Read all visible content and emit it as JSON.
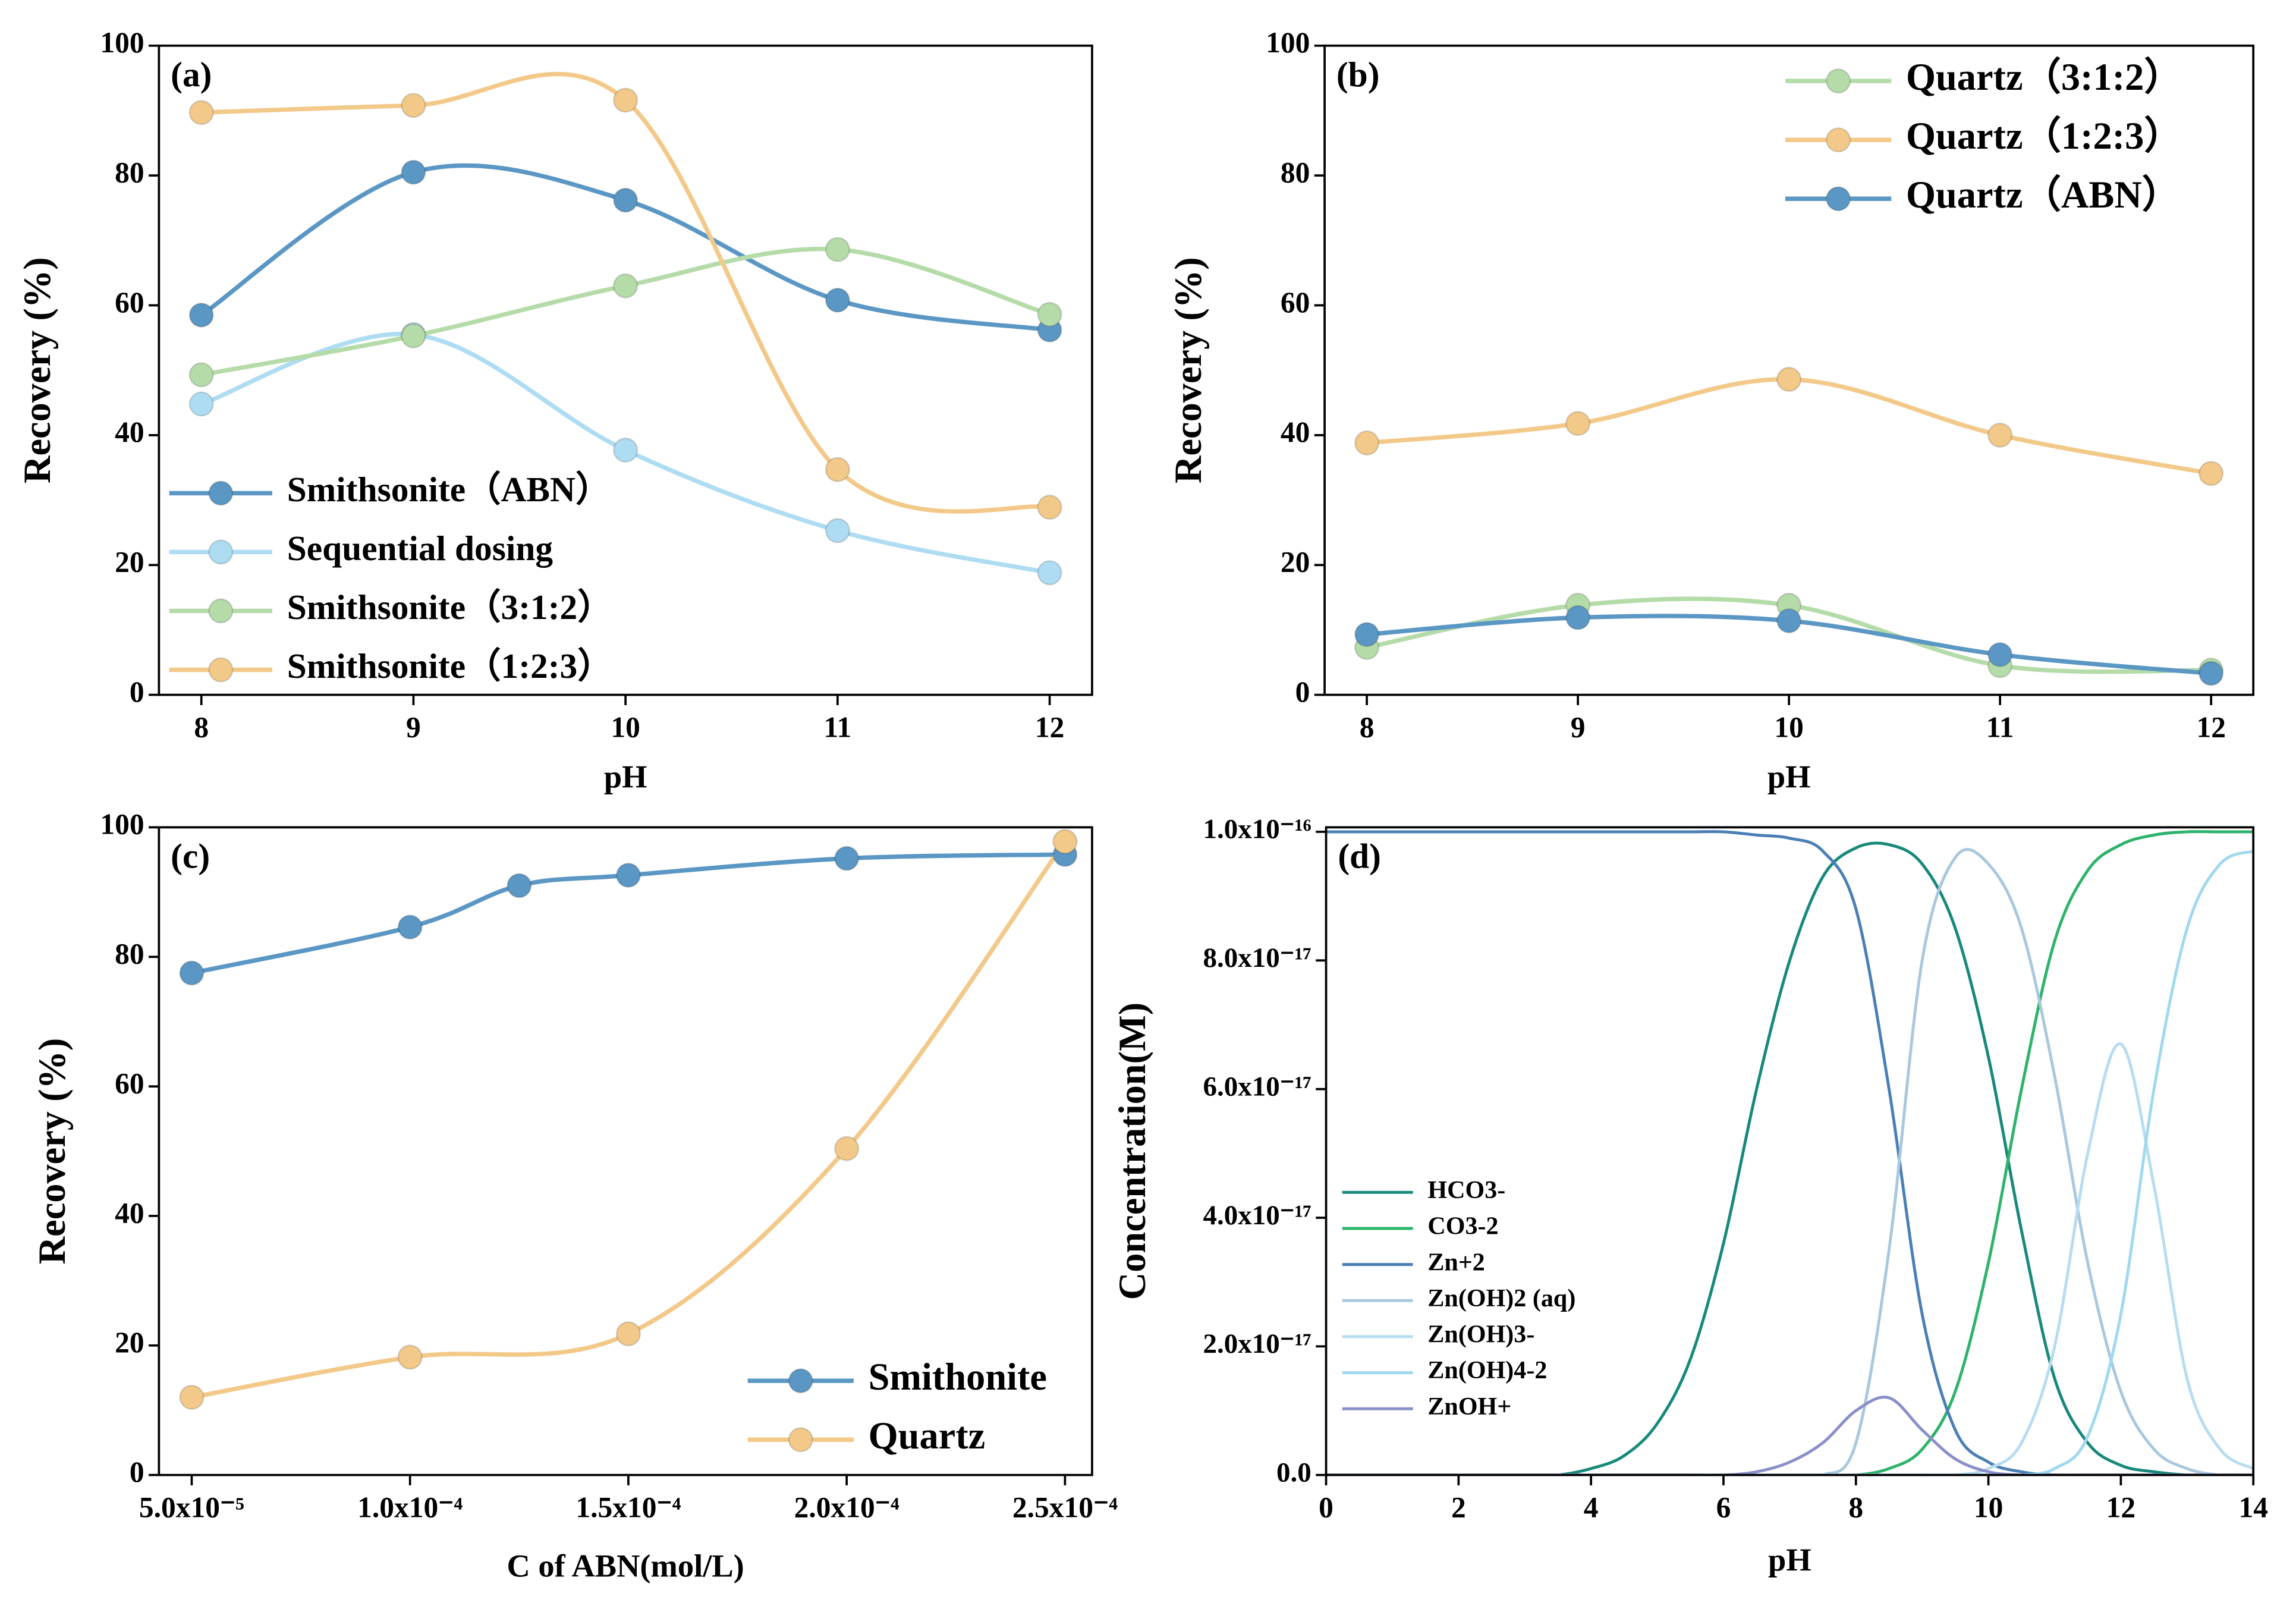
{
  "chart_data": [
    {
      "type": "line",
      "label": "(a)",
      "x_label": "pH",
      "y_label": "Recovery (%)",
      "x": [
        8,
        9,
        10,
        11,
        12
      ],
      "xlim": [
        7.8,
        12.2
      ],
      "xticks": [
        8,
        9,
        10,
        11,
        12
      ],
      "ylim": [
        0,
        100
      ],
      "yticks": [
        0,
        20,
        40,
        60,
        80,
        100
      ],
      "markers": true,
      "smooth": true,
      "legend": "lower left",
      "series": [
        {
          "name": "Smithsonite（ABN）",
          "color": "#5b97c4",
          "values": [
            58.5,
            80.5,
            76.2,
            60.8,
            56.2
          ]
        },
        {
          "name": "Sequential dosing",
          "color": "#aedcf2",
          "values": [
            44.8,
            55.5,
            37.7,
            25.3,
            18.8
          ]
        },
        {
          "name": "Smithsonite（3:1:2）",
          "color": "#b5dba9",
          "values": [
            49.3,
            55.3,
            63.0,
            68.6,
            58.6
          ]
        },
        {
          "name": "Smithsonite（1:2:3）",
          "color": "#f3c98a",
          "values": [
            89.7,
            90.8,
            91.6,
            34.7,
            28.9
          ]
        }
      ]
    },
    {
      "type": "line",
      "label": "(b)",
      "x_label": "pH",
      "y_label": "Recovery (%)",
      "x": [
        8,
        9,
        10,
        11,
        12
      ],
      "xlim": [
        7.8,
        12.2
      ],
      "xticks": [
        8,
        9,
        10,
        11,
        12
      ],
      "ylim": [
        0,
        100
      ],
      "yticks": [
        0,
        20,
        40,
        60,
        80,
        100
      ],
      "markers": true,
      "smooth": true,
      "legend": "upper right",
      "series": [
        {
          "name": "Quartz（3:1:2）",
          "color": "#b5dba9",
          "values": [
            7.3,
            13.8,
            13.8,
            4.5,
            3.8
          ]
        },
        {
          "name": "Quartz（1:2:3）",
          "color": "#f3c98a",
          "values": [
            38.8,
            41.8,
            48.6,
            40.0,
            34.1
          ]
        },
        {
          "name": "Quartz（ABN）",
          "color": "#5b97c4",
          "values": [
            9.3,
            11.9,
            11.4,
            6.2,
            3.3
          ]
        }
      ]
    },
    {
      "type": "line",
      "label": "(c)",
      "x_label": "C of ABN(mol/L)",
      "y_label": "Recovery (%)",
      "xlim": [
        4.25e-05,
        0.0002562
      ],
      "xticks": [
        {
          "value": 5e-05,
          "label": "5.0x10⁻⁵"
        },
        {
          "value": 0.0001,
          "label": "1.0x10⁻⁴"
        },
        {
          "value": 0.00015,
          "label": "1.5x10⁻⁴"
        },
        {
          "value": 0.0002,
          "label": "2.0x10⁻⁴"
        },
        {
          "value": 0.00025,
          "label": "2.5x10⁻⁴"
        }
      ],
      "ylim": [
        0,
        100
      ],
      "yticks": [
        0,
        20,
        40,
        60,
        80,
        100
      ],
      "markers": true,
      "smooth": true,
      "legend": "lower right",
      "series": [
        {
          "name": "Smithonite",
          "color": "#5b97c4",
          "x": [
            5e-05,
            0.0001,
            0.000125,
            0.00015,
            0.0002,
            0.00025
          ],
          "values": [
            77.5,
            84.6,
            91.0,
            92.6,
            95.2,
            95.8
          ]
        },
        {
          "name": "Quartz",
          "color": "#f3c98a",
          "x": [
            5e-05,
            0.0001,
            0.00015,
            0.0002,
            0.00025
          ],
          "values": [
            12.0,
            18.2,
            21.8,
            50.4,
            97.8
          ]
        }
      ]
    },
    {
      "type": "line",
      "label": "(d)",
      "x_label": "pH",
      "y_label": "Concentration(M)",
      "x": [
        0,
        0.5,
        1,
        1.5,
        2,
        2.5,
        3,
        3.5,
        4,
        4.5,
        5,
        5.5,
        6,
        6.5,
        7,
        7.5,
        8,
        8.5,
        9,
        9.5,
        10,
        10.5,
        11,
        11.5,
        12,
        12.5,
        13,
        13.5,
        14
      ],
      "xlim": [
        0,
        14
      ],
      "xticks": [
        0,
        2,
        4,
        6,
        8,
        10,
        12,
        14
      ],
      "ylim": [
        0,
        1.007e-16
      ],
      "yticks": [
        {
          "value": 0,
          "label": "0.0"
        },
        {
          "value": 2e-17,
          "label": "2.0x10⁻¹⁷"
        },
        {
          "value": 4e-17,
          "label": "4.0x10⁻¹⁷"
        },
        {
          "value": 6e-17,
          "label": "6.0x10⁻¹⁷"
        },
        {
          "value": 8e-17,
          "label": "8.0x10⁻¹⁷"
        },
        {
          "value": 1e-16,
          "label": "1.0x10⁻¹⁶"
        }
      ],
      "markers": false,
      "smooth": true,
      "legend": "lower left",
      "series": [
        {
          "name": "HCO3-",
          "color": "#17897a",
          "values": [
            0,
            0,
            0,
            0,
            0,
            0,
            0,
            0,
            1e-18,
            3e-18,
            8e-18,
            1.8e-17,
            3.6e-17,
            6e-17,
            8e-17,
            9.3e-17,
            9.75e-17,
            9.8e-17,
            9.5e-17,
            8.5e-17,
            6.5e-17,
            3.8e-17,
            1.5e-17,
            5e-18,
            1.5e-18,
            5e-19,
            0,
            0,
            0
          ]
        },
        {
          "name": "CO3-2",
          "color": "#2db36b",
          "values": [
            0,
            0,
            0,
            0,
            0,
            0,
            0,
            0,
            0,
            0,
            0,
            0,
            0,
            0,
            0,
            0,
            0,
            1e-18,
            4e-18,
            1.3e-17,
            3.3e-17,
            6e-17,
            8.3e-17,
            9.4e-17,
            9.8e-17,
            9.95e-17,
            1e-16,
            1e-16,
            1e-16
          ]
        },
        {
          "name": "Zn+2",
          "color": "#4a7fb5",
          "values": [
            1e-16,
            1e-16,
            1e-16,
            1e-16,
            1e-16,
            1e-16,
            1e-16,
            1e-16,
            1e-16,
            1e-16,
            1e-16,
            1e-16,
            1e-16,
            9.95e-17,
            9.9e-17,
            9.7e-17,
            8.8e-17,
            6e-17,
            2.5e-17,
            7e-18,
            2e-18,
            5e-19,
            0,
            0,
            0,
            0,
            0,
            0,
            0
          ]
        },
        {
          "name": "Zn(OH)2 (aq)",
          "color": "#a9c8de",
          "values": [
            0,
            0,
            0,
            0,
            0,
            0,
            0,
            0,
            0,
            0,
            0,
            0,
            0,
            0,
            0,
            0,
            5e-18,
            3.5e-17,
            8e-17,
            9.6e-17,
            9.5e-17,
            8.5e-17,
            6.2e-17,
            3.3e-17,
            1.3e-17,
            4e-18,
            1e-18,
            0,
            0
          ]
        },
        {
          "name": "Zn(OH)3-",
          "color": "#b8dcef",
          "values": [
            0,
            0,
            0,
            0,
            0,
            0,
            0,
            0,
            0,
            0,
            0,
            0,
            0,
            0,
            0,
            0,
            0,
            0,
            0,
            0,
            1e-18,
            5e-18,
            2e-17,
            5e-17,
            6.7e-17,
            4.5e-17,
            1.5e-17,
            4e-18,
            1e-18
          ]
        },
        {
          "name": "Zn(OH)4-2",
          "color": "#a0d8ef",
          "values": [
            0,
            0,
            0,
            0,
            0,
            0,
            0,
            0,
            0,
            0,
            0,
            0,
            0,
            0,
            0,
            0,
            0,
            0,
            0,
            0,
            0,
            0,
            1e-18,
            6e-18,
            2.5e-17,
            6e-17,
            8.5e-17,
            9.5e-17,
            9.7e-17
          ]
        },
        {
          "name": "ZnOH+",
          "color": "#8a8fc9",
          "values": [
            0,
            0,
            0,
            0,
            0,
            0,
            0,
            0,
            0,
            0,
            0,
            0,
            0,
            5e-19,
            2e-18,
            5e-18,
            1e-17,
            1.2e-17,
            7e-18,
            2.5e-18,
            5e-19,
            0,
            0,
            0,
            0,
            0,
            0,
            0,
            0
          ]
        }
      ]
    }
  ]
}
